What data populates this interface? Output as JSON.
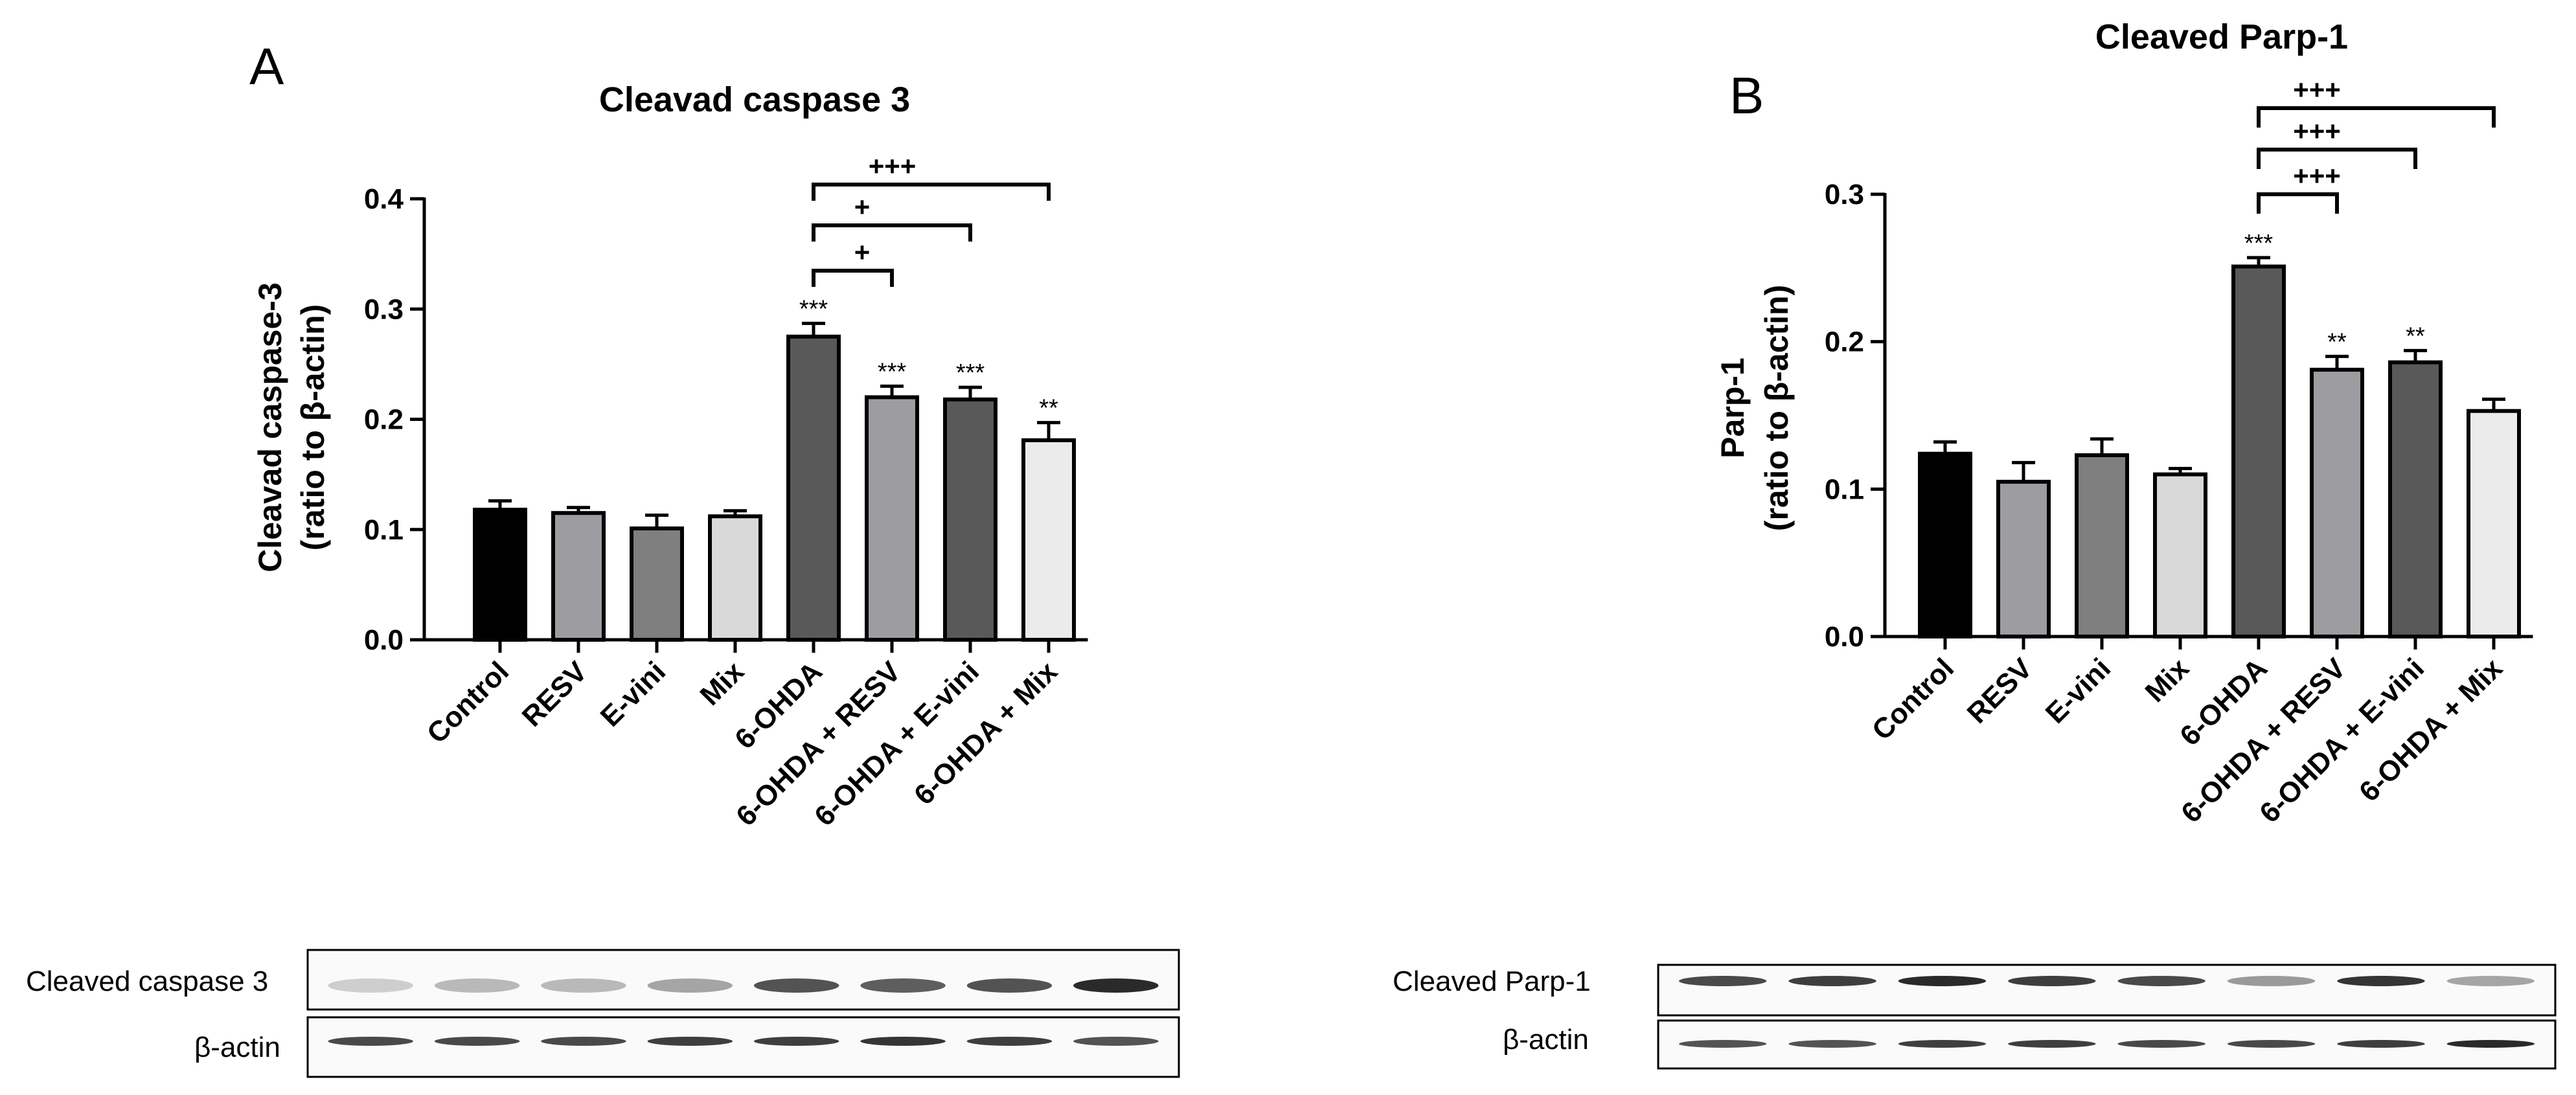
{
  "chart_data": [
    {
      "panel_label": "A",
      "type": "bar",
      "title": "Cleavad caspase 3",
      "ylabel_line1": "Cleavad caspase-3",
      "ylabel_line2": "(ratio to β-actin)",
      "categories": [
        "Control",
        "RESV",
        "E-vini",
        "Mix",
        "6-OHDA",
        "6-OHDA + RESV",
        "6-OHDA + E-vini",
        "6-OHDA + Mix"
      ],
      "values": [
        0.118,
        0.115,
        0.101,
        0.112,
        0.275,
        0.22,
        0.218,
        0.181
      ],
      "errors": [
        0.008,
        0.005,
        0.012,
        0.005,
        0.012,
        0.01,
        0.011,
        0.016
      ],
      "bar_colors": [
        "#000000",
        "#9d9ca0",
        "#7f7f7f",
        "#d9d9d9",
        "#595959",
        "#9d9ca0",
        "#595959",
        "#ebebeb"
      ],
      "significance": [
        "",
        "",
        "",
        "",
        "***",
        "***",
        "***",
        "**"
      ],
      "comparisons": [
        {
          "from": 4,
          "to": 5,
          "label": "+"
        },
        {
          "from": 4,
          "to": 6,
          "label": "+"
        },
        {
          "from": 4,
          "to": 7,
          "label": "+++"
        }
      ],
      "yticks": [
        0.0,
        0.1,
        0.2,
        0.3,
        0.4
      ],
      "ytick_labels": [
        "0.0",
        "0.1",
        "0.2",
        "0.3",
        "0.4"
      ],
      "ylim": [
        0,
        0.4
      ],
      "grid": false,
      "legend": "none"
    },
    {
      "panel_label": "B",
      "type": "bar",
      "title": "Cleaved Parp-1",
      "ylabel_line1": "Parp-1",
      "ylabel_line2": "(ratio to β-actin)",
      "categories": [
        "Control",
        "RESV",
        "E-vini",
        "Mix",
        "6-OHDA",
        "6-OHDA + RESV",
        "6-OHDA + E-vini",
        "6-OHDA + Mix"
      ],
      "values": [
        0.124,
        0.105,
        0.123,
        0.11,
        0.251,
        0.181,
        0.186,
        0.153
      ],
      "errors": [
        0.008,
        0.013,
        0.011,
        0.004,
        0.006,
        0.009,
        0.008,
        0.008
      ],
      "bar_colors": [
        "#000000",
        "#9d9ca0",
        "#7f7f7f",
        "#d9d9d9",
        "#595959",
        "#9d9ca0",
        "#595959",
        "#ebebeb"
      ],
      "significance": [
        "",
        "",
        "",
        "",
        "***",
        "**",
        "**",
        ""
      ],
      "comparisons": [
        {
          "from": 4,
          "to": 5,
          "label": "+++"
        },
        {
          "from": 4,
          "to": 6,
          "label": "+++"
        },
        {
          "from": 4,
          "to": 7,
          "label": "+++"
        }
      ],
      "yticks": [
        0.0,
        0.1,
        0.2,
        0.3
      ],
      "ytick_labels": [
        "0.0",
        "0.1",
        "0.2",
        "0.3"
      ],
      "ylim": [
        0,
        0.3
      ],
      "grid": false,
      "legend": "none"
    }
  ],
  "blots": {
    "A": {
      "row1_label": "Cleaved caspase 3",
      "row2_label": "β-actin",
      "row1_band_intensity": [
        0.15,
        0.25,
        0.25,
        0.35,
        0.75,
        0.7,
        0.75,
        0.95
      ],
      "row2_band_intensity": [
        0.8,
        0.8,
        0.8,
        0.85,
        0.85,
        0.9,
        0.85,
        0.75
      ]
    },
    "B": {
      "row1_label": "Cleaved Parp-1",
      "row2_label": "β-actin",
      "row1_band_intensity": [
        0.8,
        0.85,
        0.95,
        0.85,
        0.8,
        0.4,
        0.9,
        0.35
      ],
      "row2_band_intensity": [
        0.75,
        0.75,
        0.85,
        0.85,
        0.8,
        0.8,
        0.85,
        0.95
      ]
    }
  }
}
